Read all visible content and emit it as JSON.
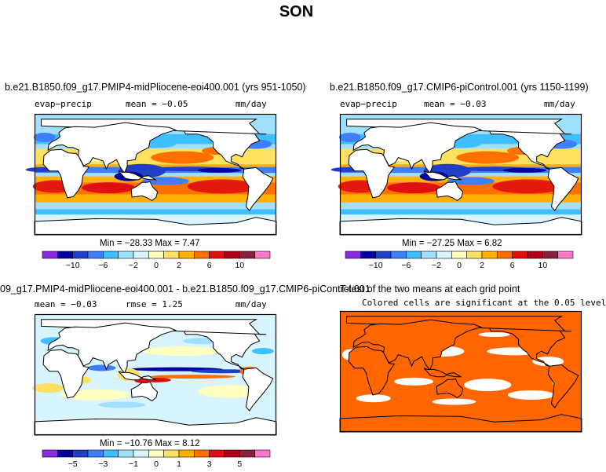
{
  "figure": {
    "title": "SON"
  },
  "colors": {
    "land": "#ffffff",
    "frame": "#000000",
    "significant": "#ff6600",
    "scale": [
      "#8a2be2",
      "#0000a0",
      "#1f3fc8",
      "#3f7fff",
      "#3fbfff",
      "#a0e0ff",
      "#d8f4ff",
      "#ffffc0",
      "#ffe060",
      "#ffb000",
      "#ff7000",
      "#e01010",
      "#b00018",
      "#8a2040",
      "#ff77cc"
    ]
  },
  "chart_data": [
    {
      "type": "heatmap",
      "panel": "top-left",
      "title": "b.e21.B1850.f09_g17.PMIP4-midPliocene-eoi400.001 (yrs 951-1050)",
      "variable": "evap−precip",
      "units": "mm/day",
      "mean_label": "mean = −0.05",
      "stats_label": "Min = −28.33  Max =   7.47",
      "colorbar_ticks": [
        "−10",
        "−6",
        "−2",
        "0",
        "2",
        "6",
        "10"
      ],
      "min": -28.33,
      "max": 7.47,
      "mean": -0.05
    },
    {
      "type": "heatmap",
      "panel": "top-right",
      "title": "b.e21.B1850.f09_g17.CMIP6-piControl.001 (yrs 1150-1199)",
      "variable": "evap−precip",
      "units": "mm/day",
      "mean_label": "mean = −0.03",
      "stats_label": "Min = −27.25  Max =   6.82",
      "colorbar_ticks": [
        "−10",
        "−6",
        "−2",
        "0",
        "2",
        "6",
        "10"
      ],
      "min": -27.25,
      "max": 6.82,
      "mean": -0.03
    },
    {
      "type": "heatmap",
      "panel": "bottom-left",
      "title": "09_g17.PMIP4-midPliocene-eoi400.001 - b.e21.B1850.f09_g17.CMIP6-piControl.001",
      "mean_label": "mean =  −0.03",
      "rmse_label": "rmse =    1.25",
      "units": "mm/day",
      "stats_label": "Min = −10.76  Max =   8.12",
      "colorbar_ticks": [
        "−5",
        "−3",
        "−1",
        "0",
        "1",
        "3",
        "5"
      ],
      "min": -10.76,
      "max": 8.12,
      "mean": -0.03,
      "rmse": 1.25
    },
    {
      "type": "heatmap",
      "panel": "bottom-right",
      "title": "T-test of the two means at each grid point",
      "subtitle": "Colored cells are significant at the 0.05 level"
    }
  ]
}
